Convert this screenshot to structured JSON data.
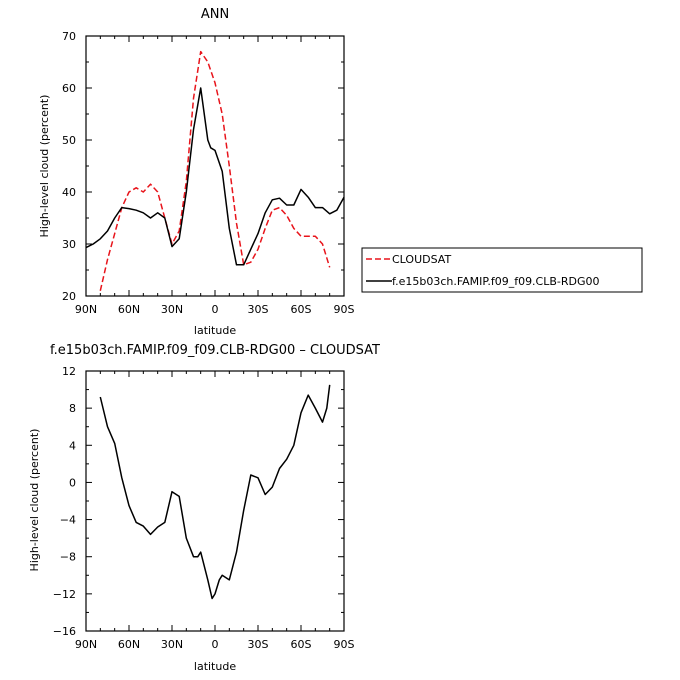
{
  "chart_data": [
    {
      "type": "line",
      "title": "ANN",
      "xlabel": "latitude",
      "ylabel": "High-level cloud (percent)",
      "xlim": [
        90,
        -90
      ],
      "ylim": [
        20,
        70
      ],
      "x_ticks": [
        90,
        60,
        30,
        0,
        -30,
        -60,
        -90
      ],
      "x_tick_labels": [
        "90N",
        "60N",
        "30N",
        "0",
        "30S",
        "60S",
        "90S"
      ],
      "y_ticks": [
        20,
        30,
        40,
        50,
        60,
        70
      ],
      "legend_placement": "right",
      "series": [
        {
          "name": "CLOUDSAT",
          "color": "#e8141b",
          "dash": "dashed",
          "x": [
            80,
            75,
            70,
            65,
            60,
            55,
            50,
            45,
            40,
            35,
            30,
            25,
            20,
            15,
            10,
            5,
            0,
            -5,
            -10,
            -15,
            -20,
            -25,
            -30,
            -35,
            -40,
            -45,
            -50,
            -55,
            -60,
            -65,
            -70,
            -75,
            -80
          ],
          "y": [
            21,
            27,
            32,
            37,
            40,
            40.8,
            40,
            41.5,
            40,
            35,
            30,
            32.5,
            42,
            58,
            67,
            65,
            61,
            55,
            45,
            34,
            26,
            26.5,
            29,
            33,
            36.5,
            37,
            35.5,
            33,
            31.5,
            31.5,
            31.5,
            30,
            25.5
          ]
        },
        {
          "name": "f.e15b03ch.FAMIP.f09_f09.CLB-RDG00",
          "color": "#000000",
          "dash": "solid",
          "x": [
            90,
            85,
            80,
            75,
            70,
            65,
            60,
            55,
            50,
            45,
            40,
            35,
            30,
            25,
            20,
            15,
            10,
            5,
            3,
            0,
            -5,
            -10,
            -15,
            -20,
            -25,
            -30,
            -35,
            -40,
            -45,
            -50,
            -55,
            -60,
            -65,
            -70,
            -75,
            -80,
            -85,
            -90
          ],
          "y": [
            29.3,
            30,
            31,
            32.5,
            35,
            37,
            36.8,
            36.5,
            36,
            35,
            36,
            35,
            29.5,
            31,
            40,
            52,
            60,
            50,
            48.5,
            48,
            44,
            33,
            26,
            26,
            29,
            32,
            36,
            38.5,
            38.8,
            37.5,
            37.5,
            40.5,
            39,
            37,
            37,
            35.8,
            36.5,
            39
          ]
        }
      ]
    },
    {
      "type": "line",
      "title": "f.e15b03ch.FAMIP.f09_f09.CLB-RDG00 – CLOUDSAT",
      "xlabel": "latitude",
      "ylabel": "High-level cloud (percent)",
      "xlim": [
        90,
        -90
      ],
      "ylim": [
        -16,
        12
      ],
      "x_ticks": [
        90,
        60,
        30,
        0,
        -30,
        -60,
        -90
      ],
      "x_tick_labels": [
        "90N",
        "60N",
        "30N",
        "0",
        "30S",
        "60S",
        "90S"
      ],
      "y_ticks": [
        -16,
        -12,
        -8,
        -4,
        0,
        4,
        8,
        12
      ],
      "series": [
        {
          "color": "#000000",
          "dash": "solid",
          "x": [
            80,
            75,
            70,
            65,
            60,
            55,
            50,
            45,
            40,
            35,
            30,
            25,
            20,
            15,
            12,
            10,
            5,
            2,
            0,
            -3,
            -5,
            -10,
            -15,
            -20,
            -25,
            -30,
            -35,
            -40,
            -45,
            -50,
            -55,
            -60,
            -65,
            -70,
            -75,
            -78,
            -80
          ],
          "y": [
            9.2,
            6,
            4.2,
            0.5,
            -2.5,
            -4.3,
            -4.7,
            -5.6,
            -4.8,
            -4.3,
            -1,
            -1.5,
            -6,
            -8,
            -8,
            -7.5,
            -10.5,
            -12.5,
            -12,
            -10.5,
            -10,
            -10.5,
            -7.5,
            -3,
            0.8,
            0.5,
            -1.3,
            -0.5,
            1.5,
            2.5,
            4,
            7.5,
            9.4,
            8,
            6.5,
            8,
            10.5
          ]
        }
      ]
    }
  ]
}
